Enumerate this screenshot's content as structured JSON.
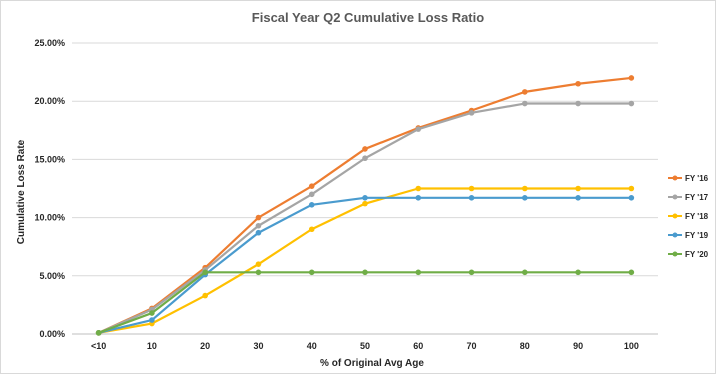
{
  "chart_data": {
    "type": "line",
    "title": "Fiscal Year Q2 Cumulative Loss Ratio",
    "xlabel": "% of Original Avg Age",
    "ylabel": "Cumulative Loss Rate",
    "categories": [
      "<10",
      "10",
      "20",
      "30",
      "40",
      "50",
      "60",
      "70",
      "80",
      "90",
      "100"
    ],
    "ylim": [
      0,
      0.25
    ],
    "yticks": [
      0,
      0.05,
      0.1,
      0.15,
      0.2,
      0.25
    ],
    "ytick_labels": [
      "0.00%",
      "5.00%",
      "10.00%",
      "15.00%",
      "20.00%",
      "25.00%"
    ],
    "grid": true,
    "legend_position": "right",
    "series": [
      {
        "name": "FY '16",
        "color": "#ED7D31",
        "values": [
          0.001,
          0.022,
          0.057,
          0.1,
          0.127,
          0.159,
          0.177,
          0.192,
          0.208,
          0.215,
          0.22
        ]
      },
      {
        "name": "FY '17",
        "color": "#A5A5A5",
        "values": [
          0.001,
          0.021,
          0.055,
          0.093,
          0.12,
          0.151,
          0.176,
          0.19,
          0.198,
          0.198,
          0.198
        ]
      },
      {
        "name": "FY '18",
        "color": "#FFC000",
        "values": [
          0.001,
          0.009,
          0.033,
          0.06,
          0.09,
          0.112,
          0.125,
          0.125,
          0.125,
          0.125,
          0.125
        ]
      },
      {
        "name": "FY '19",
        "color": "#4A9BCE",
        "values": [
          0.001,
          0.012,
          0.051,
          0.087,
          0.111,
          0.117,
          0.117,
          0.117,
          0.117,
          0.117,
          0.117
        ]
      },
      {
        "name": "FY '20",
        "color": "#70AD47",
        "values": [
          0.001,
          0.018,
          0.053,
          0.053,
          0.053,
          0.053,
          0.053,
          0.053,
          0.053,
          0.053,
          0.053
        ]
      }
    ]
  }
}
